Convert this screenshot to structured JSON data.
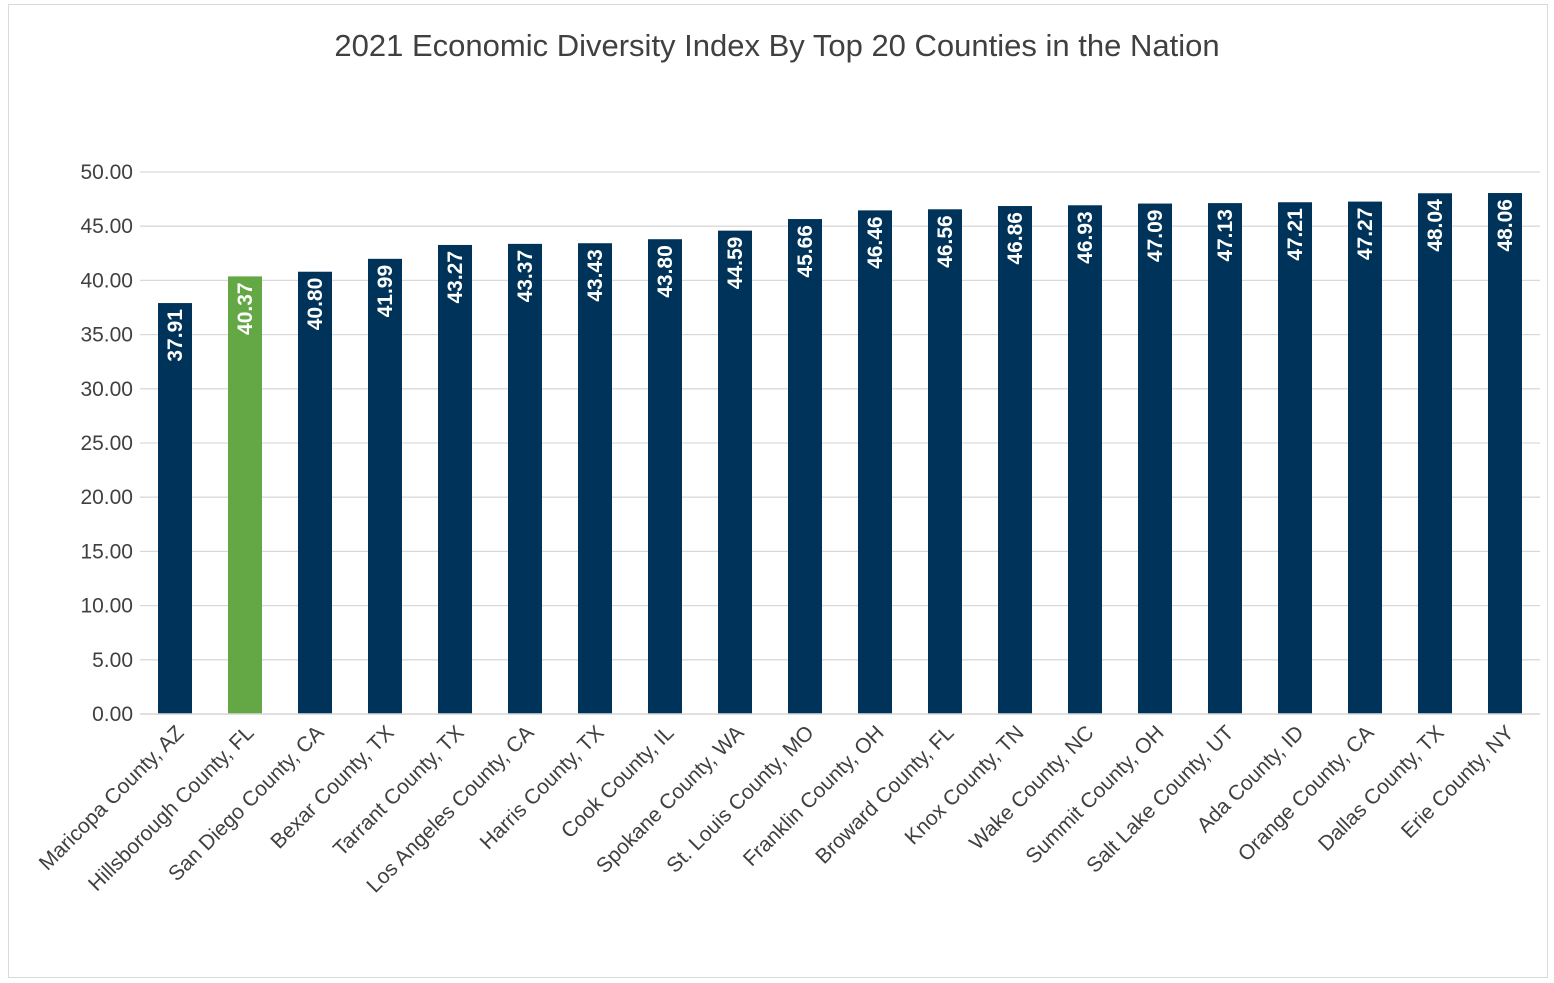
{
  "chart_data": {
    "type": "bar",
    "title": "2021 Economic Diversity Index By Top 20 Counties in the Nation",
    "xlabel": "",
    "ylabel": "",
    "ylim": [
      0,
      50
    ],
    "yticks": [
      "0.00",
      "5.00",
      "10.00",
      "15.00",
      "20.00",
      "25.00",
      "30.00",
      "35.00",
      "40.00",
      "45.00",
      "50.00"
    ],
    "categories": [
      "Maricopa County, AZ",
      "Hillsborough County, FL",
      "San Diego County, CA",
      "Bexar County, TX",
      "Tarrant County, TX",
      "Los Angeles County, CA",
      "Harris County, TX",
      "Cook County, IL",
      "Spokane County, WA",
      "St. Louis County, MO",
      "Franklin County, OH",
      "Broward County, FL",
      "Knox County, TN",
      "Wake County, NC",
      "Summit County, OH",
      "Salt Lake County, UT",
      "Ada County, ID",
      "Orange County, CA",
      "Dallas County, TX",
      "Erie County, NY"
    ],
    "values": [
      37.91,
      40.37,
      40.8,
      41.99,
      43.27,
      43.37,
      43.43,
      43.8,
      44.59,
      45.66,
      46.46,
      46.56,
      46.86,
      46.93,
      47.09,
      47.13,
      47.21,
      47.27,
      48.04,
      48.06
    ],
    "data_labels": [
      "37.91",
      "40.37",
      "40.80",
      "41.99",
      "43.27",
      "43.37",
      "43.43",
      "43.80",
      "44.59",
      "45.66",
      "46.46",
      "46.56",
      "46.86",
      "46.93",
      "47.09",
      "47.13",
      "47.21",
      "47.27",
      "48.04",
      "48.06"
    ],
    "highlight_index": 1,
    "grid": true,
    "legend": "none",
    "colors": {
      "bar": "#003359",
      "highlight": "#63a844",
      "grid": "#d9d9d9",
      "text": "#404040",
      "label": "#ffffff"
    }
  }
}
